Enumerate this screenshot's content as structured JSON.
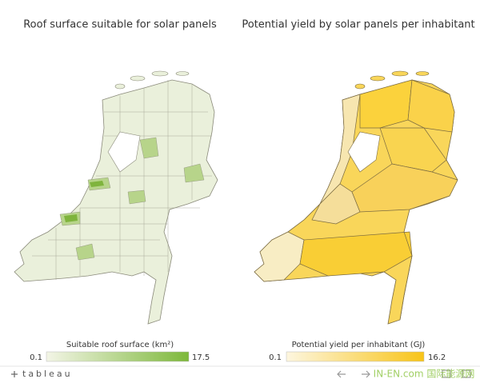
{
  "left": {
    "title": "Roof surface suitable for solar panels",
    "legend": {
      "title": "Suitable roof surface (km²)",
      "min": "0.1",
      "max": "17.5"
    }
  },
  "right": {
    "title": "Potential yield by solar panels per inhabitant",
    "legend": {
      "title": "Potential yield per inhabitant (GJ)",
      "min": "0.1",
      "max": "16.2"
    }
  },
  "footer": {
    "logo": "tableau",
    "watermark": "IN-EN.com 国际能源网"
  }
}
